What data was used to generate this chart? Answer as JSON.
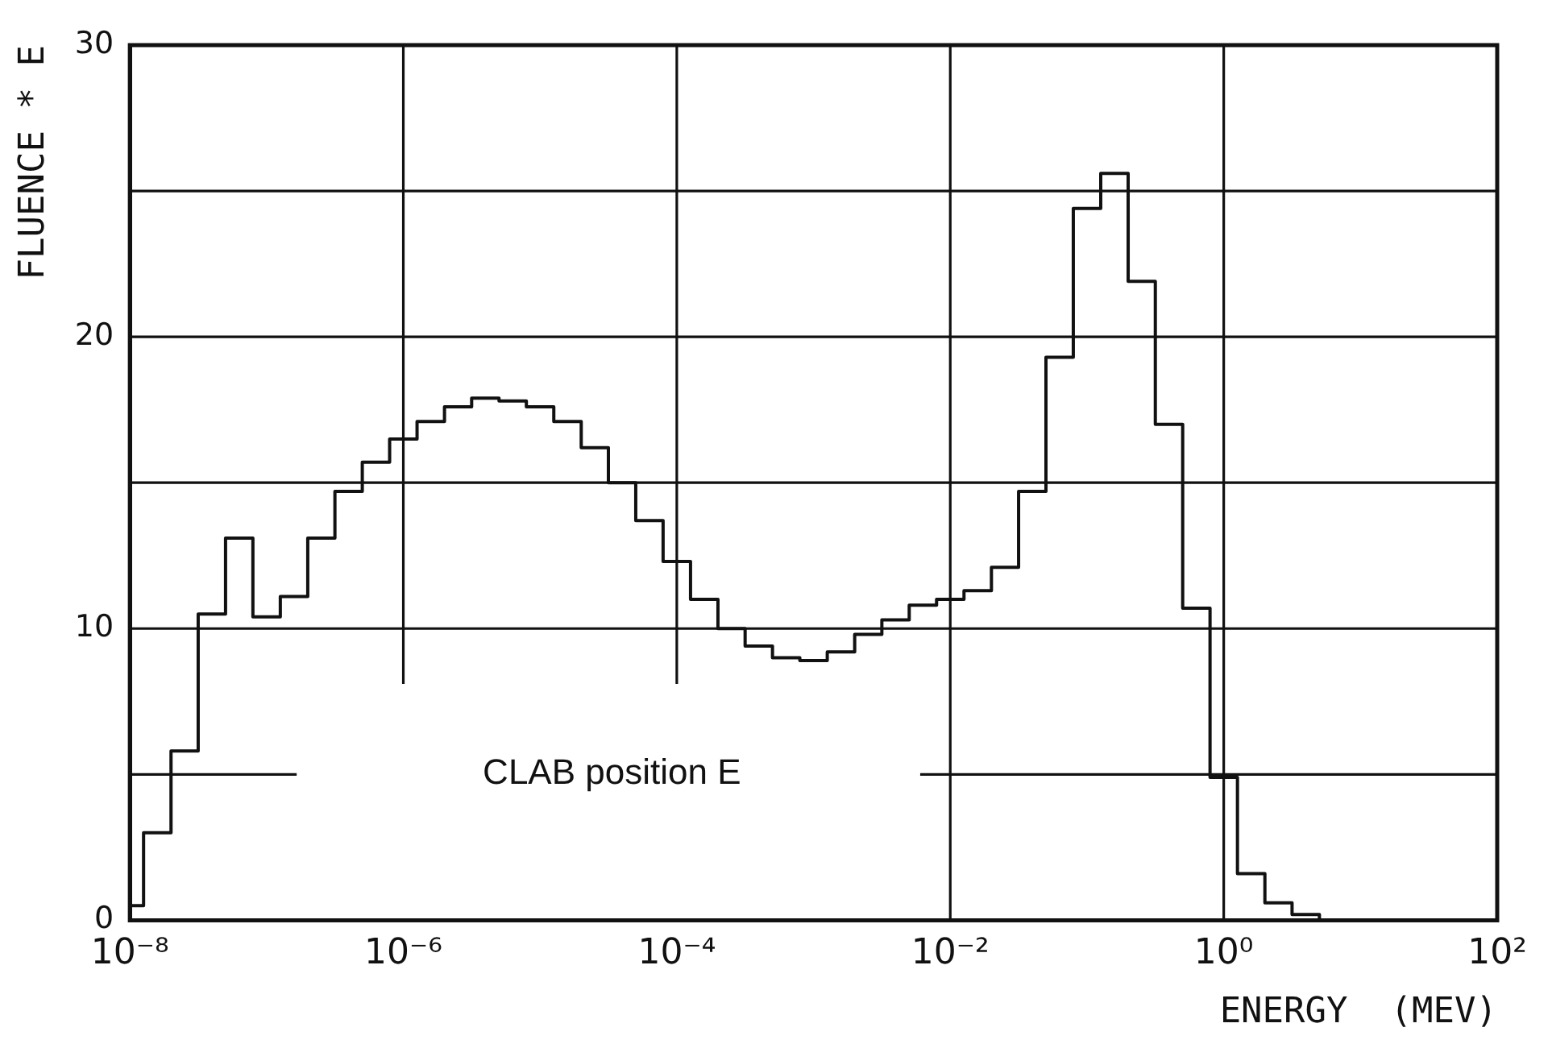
{
  "chart_data": {
    "type": "histogram",
    "xlabel": "ENERGY  (MEV)",
    "ylabel": "FLUENCE * E",
    "bins": [
      1e-08,
      1.26e-08,
      2e-08,
      3.16e-08,
      5.01e-08,
      7.94e-08,
      1.26e-07,
      2e-07,
      3.16e-07,
      5.01e-07,
      7.94e-07,
      1.26e-06,
      2e-06,
      3.16e-06,
      5.01e-06,
      7.94e-06,
      1.26e-05,
      2e-05,
      3.16e-05,
      5.01e-05,
      7.94e-05,
      0.000126,
      0.0002,
      0.000316,
      0.000501,
      0.000794,
      0.00126,
      0.002,
      0.00316,
      0.00501,
      0.00794,
      0.0126,
      0.02,
      0.0316,
      0.0501,
      0.0794,
      0.126,
      0.2,
      0.316,
      0.501,
      0.794,
      1.26,
      2,
      3.16,
      5.01
    ],
    "values": [
      0.5,
      3.0,
      5.8,
      10.5,
      13.1,
      10.4,
      11.1,
      13.1,
      14.7,
      15.7,
      16.5,
      17.1,
      17.6,
      17.9,
      17.8,
      17.6,
      17.1,
      16.2,
      15.0,
      13.7,
      12.3,
      11.0,
      10.0,
      9.4,
      9.0,
      8.9,
      9.2,
      9.8,
      10.3,
      10.8,
      11.0,
      11.3,
      12.1,
      14.7,
      19.3,
      24.4,
      25.6,
      21.9,
      17.0,
      10.7,
      4.9,
      1.6,
      0.6,
      0.2
    ],
    "color": "#111111",
    "log": "x",
    "xlim": [
      1e-08,
      100
    ],
    "xticks": [
      {
        "value": 1e-08,
        "label": "10⁻⁸"
      },
      {
        "value": 1e-06,
        "label": "10⁻⁶"
      },
      {
        "value": 0.0001,
        "label": "10⁻⁴"
      },
      {
        "value": 0.01,
        "label": "10⁻²"
      },
      {
        "value": 1,
        "label": "10⁰"
      },
      {
        "value": 100,
        "label": "10²"
      }
    ],
    "ylim": [
      0,
      30
    ],
    "yticks": [
      0,
      10,
      {
        "value": 15,
        "label": null
      },
      20,
      {
        "value": 25,
        "label": null
      },
      30
    ],
    "grid": true,
    "ref_lines": [
      {
        "axis": "y",
        "value": 5,
        "label": "CLAB position E"
      }
    ]
  }
}
